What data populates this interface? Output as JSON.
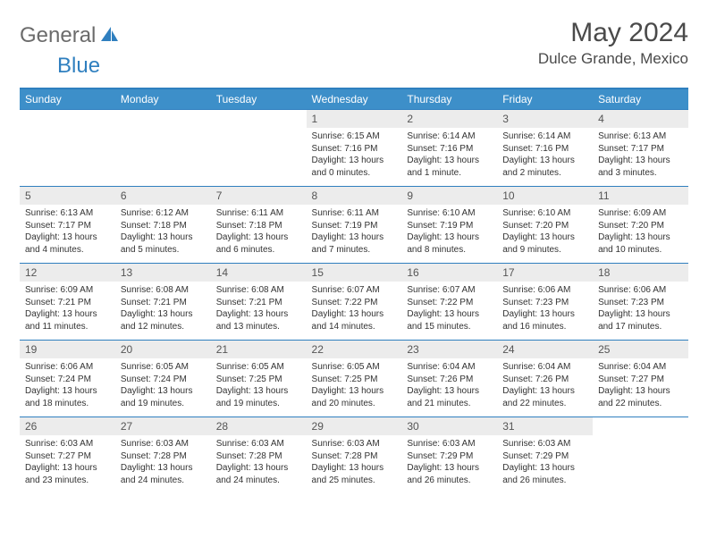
{
  "brand": {
    "general": "General",
    "blue": "Blue"
  },
  "title": "May 2024",
  "location": "Dulce Grande, Mexico",
  "colors": {
    "header_bg": "#3d8fc9",
    "border": "#2f7fbf",
    "daynum_bg": "#ececec",
    "logo_gray": "#6b6b6b",
    "logo_blue": "#2f7fbf",
    "text": "#4a4a4a"
  },
  "dayHeaders": [
    "Sunday",
    "Monday",
    "Tuesday",
    "Wednesday",
    "Thursday",
    "Friday",
    "Saturday"
  ],
  "weeks": [
    [
      {
        "n": "",
        "sr": "",
        "ss": "",
        "dl": ""
      },
      {
        "n": "",
        "sr": "",
        "ss": "",
        "dl": ""
      },
      {
        "n": "",
        "sr": "",
        "ss": "",
        "dl": ""
      },
      {
        "n": "1",
        "sr": "6:15 AM",
        "ss": "7:16 PM",
        "dl": "13 hours and 0 minutes."
      },
      {
        "n": "2",
        "sr": "6:14 AM",
        "ss": "7:16 PM",
        "dl": "13 hours and 1 minute."
      },
      {
        "n": "3",
        "sr": "6:14 AM",
        "ss": "7:16 PM",
        "dl": "13 hours and 2 minutes."
      },
      {
        "n": "4",
        "sr": "6:13 AM",
        "ss": "7:17 PM",
        "dl": "13 hours and 3 minutes."
      }
    ],
    [
      {
        "n": "5",
        "sr": "6:13 AM",
        "ss": "7:17 PM",
        "dl": "13 hours and 4 minutes."
      },
      {
        "n": "6",
        "sr": "6:12 AM",
        "ss": "7:18 PM",
        "dl": "13 hours and 5 minutes."
      },
      {
        "n": "7",
        "sr": "6:11 AM",
        "ss": "7:18 PM",
        "dl": "13 hours and 6 minutes."
      },
      {
        "n": "8",
        "sr": "6:11 AM",
        "ss": "7:19 PM",
        "dl": "13 hours and 7 minutes."
      },
      {
        "n": "9",
        "sr": "6:10 AM",
        "ss": "7:19 PM",
        "dl": "13 hours and 8 minutes."
      },
      {
        "n": "10",
        "sr": "6:10 AM",
        "ss": "7:20 PM",
        "dl": "13 hours and 9 minutes."
      },
      {
        "n": "11",
        "sr": "6:09 AM",
        "ss": "7:20 PM",
        "dl": "13 hours and 10 minutes."
      }
    ],
    [
      {
        "n": "12",
        "sr": "6:09 AM",
        "ss": "7:21 PM",
        "dl": "13 hours and 11 minutes."
      },
      {
        "n": "13",
        "sr": "6:08 AM",
        "ss": "7:21 PM",
        "dl": "13 hours and 12 minutes."
      },
      {
        "n": "14",
        "sr": "6:08 AM",
        "ss": "7:21 PM",
        "dl": "13 hours and 13 minutes."
      },
      {
        "n": "15",
        "sr": "6:07 AM",
        "ss": "7:22 PM",
        "dl": "13 hours and 14 minutes."
      },
      {
        "n": "16",
        "sr": "6:07 AM",
        "ss": "7:22 PM",
        "dl": "13 hours and 15 minutes."
      },
      {
        "n": "17",
        "sr": "6:06 AM",
        "ss": "7:23 PM",
        "dl": "13 hours and 16 minutes."
      },
      {
        "n": "18",
        "sr": "6:06 AM",
        "ss": "7:23 PM",
        "dl": "13 hours and 17 minutes."
      }
    ],
    [
      {
        "n": "19",
        "sr": "6:06 AM",
        "ss": "7:24 PM",
        "dl": "13 hours and 18 minutes."
      },
      {
        "n": "20",
        "sr": "6:05 AM",
        "ss": "7:24 PM",
        "dl": "13 hours and 19 minutes."
      },
      {
        "n": "21",
        "sr": "6:05 AM",
        "ss": "7:25 PM",
        "dl": "13 hours and 19 minutes."
      },
      {
        "n": "22",
        "sr": "6:05 AM",
        "ss": "7:25 PM",
        "dl": "13 hours and 20 minutes."
      },
      {
        "n": "23",
        "sr": "6:04 AM",
        "ss": "7:26 PM",
        "dl": "13 hours and 21 minutes."
      },
      {
        "n": "24",
        "sr": "6:04 AM",
        "ss": "7:26 PM",
        "dl": "13 hours and 22 minutes."
      },
      {
        "n": "25",
        "sr": "6:04 AM",
        "ss": "7:27 PM",
        "dl": "13 hours and 22 minutes."
      }
    ],
    [
      {
        "n": "26",
        "sr": "6:03 AM",
        "ss": "7:27 PM",
        "dl": "13 hours and 23 minutes."
      },
      {
        "n": "27",
        "sr": "6:03 AM",
        "ss": "7:28 PM",
        "dl": "13 hours and 24 minutes."
      },
      {
        "n": "28",
        "sr": "6:03 AM",
        "ss": "7:28 PM",
        "dl": "13 hours and 24 minutes."
      },
      {
        "n": "29",
        "sr": "6:03 AM",
        "ss": "7:28 PM",
        "dl": "13 hours and 25 minutes."
      },
      {
        "n": "30",
        "sr": "6:03 AM",
        "ss": "7:29 PM",
        "dl": "13 hours and 26 minutes."
      },
      {
        "n": "31",
        "sr": "6:03 AM",
        "ss": "7:29 PM",
        "dl": "13 hours and 26 minutes."
      },
      {
        "n": "",
        "sr": "",
        "ss": "",
        "dl": ""
      }
    ]
  ],
  "labels": {
    "sunrise": "Sunrise:",
    "sunset": "Sunset:",
    "daylight": "Daylight:"
  }
}
